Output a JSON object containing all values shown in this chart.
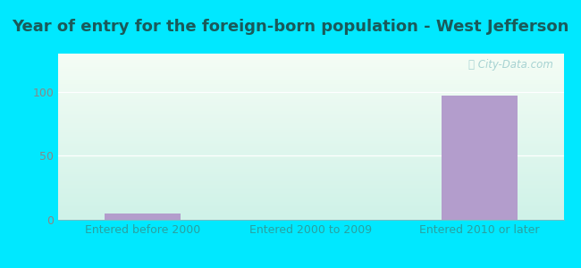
{
  "title": "Year of entry for the foreign-born population - West Jefferson",
  "categories": [
    "Entered before 2000",
    "Entered 2000 to 2009",
    "Entered 2010 or later"
  ],
  "values": [
    5,
    0,
    97
  ],
  "bar_color": "#b39dcc",
  "tick_label_color": "#2aa0a0",
  "title_color": "#1a5a5a",
  "background_outer": "#00e8ff",
  "background_inner_top": "#f5fdf5",
  "background_inner_bottom": "#cff2e8",
  "ylabel_ticks": [
    0,
    50,
    100
  ],
  "ylim": [
    0,
    130
  ],
  "title_fontsize": 13,
  "tick_fontsize": 9,
  "watermark": "ⓘ City-Data.com",
  "watermark_color": "#9ecece"
}
